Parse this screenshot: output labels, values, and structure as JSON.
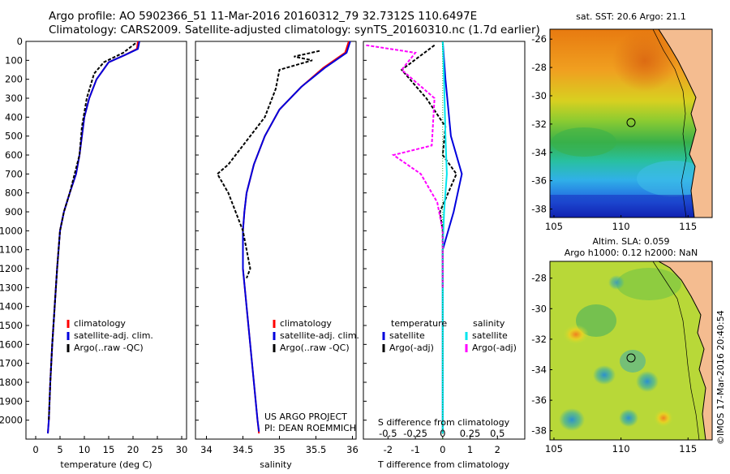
{
  "header": {
    "line1": "Argo profile: AO 5902366_51 11-Mar-2016 20160312_79 32.7312S 110.6497E",
    "line2": "Climatology: CARS2009. Satellite-adjusted climatology: synTS_20160310.nc (1.7d earlier)"
  },
  "side_label": "©IMOS 17-Mar-2016 20:40:54",
  "colors": {
    "climatology": "#ff0000",
    "satellite": "#0000dd",
    "argo": "#000000",
    "sat_salinity": "#00e5ee",
    "argo_salinity": "#ff00ff"
  },
  "chart_data": [
    {
      "type": "line",
      "id": "temperature-profile",
      "xlabel": "temperature (deg C)",
      "xticks": [
        "0",
        "5",
        "10",
        "15",
        "20",
        "25",
        "30"
      ],
      "xlim": [
        -2,
        31
      ],
      "ylim": [
        2100,
        0
      ],
      "yticks": [
        "0",
        "100",
        "200",
        "300",
        "400",
        "500",
        "600",
        "700",
        "800",
        "900",
        "1000",
        "1100",
        "1200",
        "1300",
        "1400",
        "1500",
        "1600",
        "1700",
        "1800",
        "1900",
        "2000"
      ],
      "legend": [
        "climatology",
        "satellite-adj. clim.",
        "Argo(..raw -QC)"
      ],
      "series": [
        {
          "name": "climatology",
          "color": "#ff0000",
          "points": [
            [
              21,
              0
            ],
            [
              20.8,
              40
            ],
            [
              18.5,
              70
            ],
            [
              15,
              110
            ],
            [
              12.5,
              200
            ],
            [
              11,
              300
            ],
            [
              10,
              400
            ],
            [
              9.5,
              500
            ],
            [
              9,
              600
            ],
            [
              8.3,
              700
            ],
            [
              7,
              800
            ],
            [
              5.8,
              900
            ],
            [
              5,
              1000
            ],
            [
              4.4,
              1200
            ],
            [
              3.9,
              1400
            ],
            [
              3.4,
              1600
            ],
            [
              3,
              1800
            ],
            [
              2.7,
              2000
            ],
            [
              2.5,
              2070
            ]
          ]
        },
        {
          "name": "satellite-adj. clim.",
          "color": "#0000dd",
          "points": [
            [
              21.3,
              0
            ],
            [
              21,
              40
            ],
            [
              18.5,
              70
            ],
            [
              15,
              110
            ],
            [
              12.5,
              200
            ],
            [
              11,
              300
            ],
            [
              10,
              400
            ],
            [
              9.5,
              500
            ],
            [
              9,
              600
            ],
            [
              8.3,
              700
            ],
            [
              7,
              800
            ],
            [
              5.8,
              900
            ],
            [
              5,
              1000
            ],
            [
              4.4,
              1200
            ],
            [
              3.9,
              1400
            ],
            [
              3.4,
              1600
            ],
            [
              3,
              1800
            ],
            [
              2.7,
              2000
            ],
            [
              2.5,
              2070
            ]
          ]
        },
        {
          "name": "Argo(..raw -QC)",
          "color": "#000000",
          "points": [
            [
              20.5,
              10
            ],
            [
              18,
              60
            ],
            [
              14,
              110
            ],
            [
              12,
              170
            ],
            [
              10.5,
              300
            ],
            [
              9.5,
              450
            ],
            [
              9,
              600
            ],
            [
              8,
              700
            ],
            [
              7,
              800
            ],
            [
              5.8,
              900
            ],
            [
              5,
              1000
            ],
            [
              4.4,
              1200
            ],
            [
              3.9,
              1400
            ],
            [
              3.4,
              1600
            ],
            [
              3,
              1800
            ],
            [
              2.7,
              2000
            ]
          ]
        }
      ]
    },
    {
      "type": "line",
      "id": "salinity-profile",
      "xlabel": "salinity",
      "xticks": [
        "34",
        "34.5",
        "35",
        "35.5",
        "36"
      ],
      "xlim": [
        33.85,
        36.05
      ],
      "ylim": [
        2100,
        0
      ],
      "legend": [
        "climatology",
        "satellite-adj. clim.",
        "Argo(..raw -QC)"
      ],
      "annotation": [
        "US ARGO PROJECT",
        "PI: DEAN ROEMMICH"
      ],
      "series": [
        {
          "name": "climatology",
          "color": "#ff0000",
          "points": [
            [
              35.95,
              0
            ],
            [
              35.9,
              60
            ],
            [
              35.6,
              140
            ],
            [
              35.3,
              240
            ],
            [
              35.0,
              360
            ],
            [
              34.8,
              500
            ],
            [
              34.65,
              650
            ],
            [
              34.55,
              800
            ],
            [
              34.52,
              900
            ],
            [
              34.5,
              1000
            ],
            [
              34.5,
              1200
            ],
            [
              34.55,
              1400
            ],
            [
              34.6,
              1600
            ],
            [
              34.65,
              1800
            ],
            [
              34.7,
              2000
            ],
            [
              34.72,
              2070
            ]
          ]
        },
        {
          "name": "satellite-adj. clim.",
          "color": "#0000dd",
          "points": [
            [
              35.97,
              0
            ],
            [
              35.92,
              60
            ],
            [
              35.62,
              140
            ],
            [
              35.3,
              240
            ],
            [
              35.0,
              360
            ],
            [
              34.8,
              500
            ],
            [
              34.65,
              650
            ],
            [
              34.55,
              800
            ],
            [
              34.52,
              900
            ],
            [
              34.5,
              1000
            ],
            [
              34.5,
              1200
            ],
            [
              34.55,
              1400
            ],
            [
              34.6,
              1600
            ],
            [
              34.65,
              1800
            ],
            [
              34.7,
              2000
            ],
            [
              34.72,
              2060
            ]
          ]
        },
        {
          "name": "Argo(..raw -QC)",
          "color": "#000000",
          "points": [
            [
              35.55,
              50
            ],
            [
              35.2,
              80
            ],
            [
              35.45,
              100
            ],
            [
              35.0,
              150
            ],
            [
              34.95,
              250
            ],
            [
              34.8,
              400
            ],
            [
              34.5,
              550
            ],
            [
              34.3,
              650
            ],
            [
              34.15,
              700
            ],
            [
              34.3,
              800
            ],
            [
              34.4,
              900
            ],
            [
              34.5,
              1000
            ],
            [
              34.6,
              1200
            ],
            [
              34.55,
              1250
            ]
          ]
        }
      ]
    },
    {
      "type": "line",
      "id": "difference-profile",
      "xlabel": "T difference from climatology",
      "xticks": [
        "-2",
        "-1",
        "0",
        "1",
        "2"
      ],
      "xlim": [
        -2.9,
        3.0
      ],
      "top_label": "S difference from climatology",
      "top_ticks": [
        "-0.5",
        "-0.25",
        "0",
        "0.25",
        "0.5"
      ],
      "ylim": [
        2100,
        0
      ],
      "legend_left": [
        "temperature",
        "satellite",
        "Argo(-adj)"
      ],
      "legend_right": [
        "salinity",
        "satellite",
        "Argo(-adj)"
      ],
      "series": [
        {
          "name": "temperature satellite",
          "color": "#0000dd",
          "points": [
            [
              0,
              0
            ],
            [
              0.1,
              200
            ],
            [
              0.3,
              500
            ],
            [
              0.7,
              700
            ],
            [
              0.4,
              900
            ],
            [
              0,
              1100
            ],
            [
              0,
              2070
            ]
          ]
        },
        {
          "name": "temperature Argo(-adj)",
          "color": "#000000",
          "points": [
            [
              -0.3,
              20
            ],
            [
              -1.5,
              150
            ],
            [
              -0.6,
              300
            ],
            [
              0.1,
              450
            ],
            [
              0,
              600
            ],
            [
              0.5,
              700
            ],
            [
              -0.1,
              900
            ],
            [
              0,
              1000
            ],
            [
              0,
              1300
            ]
          ]
        },
        {
          "name": "salinity satellite",
          "color": "#00e5ee",
          "points": [
            [
              0,
              0
            ],
            [
              0.05,
              200
            ],
            [
              0.1,
              500
            ],
            [
              0.15,
              700
            ],
            [
              0.05,
              900
            ],
            [
              0,
              1100
            ],
            [
              0,
              2070
            ]
          ]
        },
        {
          "name": "salinity Argo(-adj)",
          "color": "#ff00ff",
          "points": [
            [
              -2.8,
              20
            ],
            [
              -1,
              60
            ],
            [
              -1.5,
              150
            ],
            [
              -0.3,
              300
            ],
            [
              -0.4,
              550
            ],
            [
              -1.8,
              600
            ],
            [
              -0.8,
              700
            ],
            [
              -0.2,
              850
            ],
            [
              0,
              1000
            ],
            [
              0,
              1300
            ]
          ]
        }
      ]
    }
  ],
  "map_sst": {
    "title": "sat. SST: 20.6 Argo: 21.1",
    "xticks": [
      "105",
      "110",
      "115"
    ],
    "yticks": [
      "-26",
      "-28",
      "-30",
      "-32",
      "-34",
      "-36",
      "-38"
    ]
  },
  "map_sla": {
    "title1": "Altim. SLA: 0.059",
    "title2": "Argo h1000: 0.12 h2000: NaN",
    "xticks": [
      "105",
      "110",
      "115"
    ],
    "yticks": [
      "-28",
      "-30",
      "-32",
      "-34",
      "-36",
      "-38"
    ]
  }
}
